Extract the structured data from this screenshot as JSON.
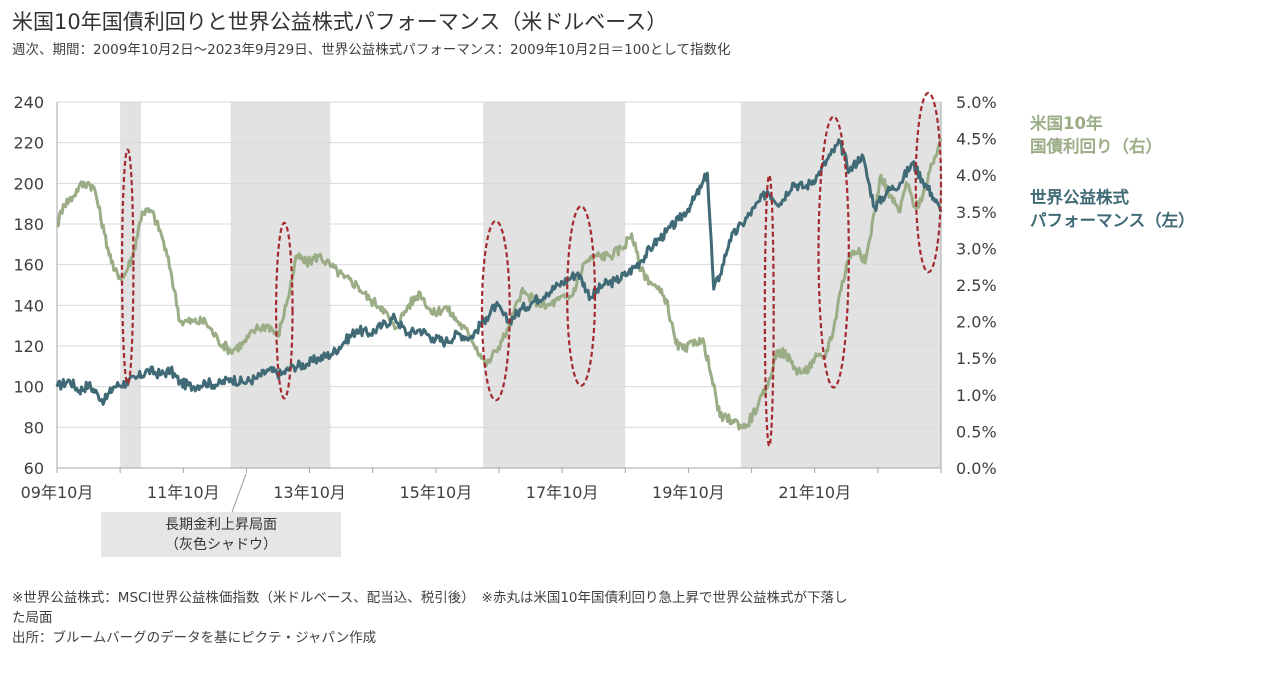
{
  "header": {
    "title": "米国10年国債利回りと世界公益株式パフォーマンス（米ドルベース）",
    "subtitle": "週次、期間：2009年10月2日～2023年9月29日、世界公益株式パフォーマンス：2009年10月2日＝100として指数化"
  },
  "legend": {
    "yield_line1": "米国10年",
    "yield_line2": "国債利回り（右）",
    "equity_line1": "世界公益株式",
    "equity_line2": "パフォーマンス（左）"
  },
  "shadow_label": {
    "line1": "長期金利上昇局面",
    "line2": "（灰色シャドウ）"
  },
  "notes": {
    "line1": "※世界公益株式：MSCI世界公益株価指数（米ドルベース、配当込、税引後）　※赤丸は米国10年国債利回り急上昇で世界公益株式が下落し",
    "line2": "た局面",
    "line3": "出所：ブルームバーグのデータを基にピクテ・ジャパン作成"
  },
  "chart_data": {
    "type": "line",
    "x_range": [
      2009.75,
      2023.75
    ],
    "x_ticks": [
      {
        "x": 2009.75,
        "label": "09年10月"
      },
      {
        "x": 2011.75,
        "label": "11年10月"
      },
      {
        "x": 2013.75,
        "label": "13年10月"
      },
      {
        "x": 2015.75,
        "label": "15年10月"
      },
      {
        "x": 2017.75,
        "label": "17年10月"
      },
      {
        "x": 2019.75,
        "label": "19年10月"
      },
      {
        "x": 2021.75,
        "label": "21年10月"
      }
    ],
    "y_left": {
      "min": 60,
      "max": 240,
      "ticks": [
        "60",
        "80",
        "100",
        "120",
        "140",
        "160",
        "180",
        "200",
        "220",
        "240"
      ]
    },
    "y_right": {
      "min": 0,
      "max": 5,
      "ticks": [
        "0.0%",
        "0.5%",
        "1.0%",
        "1.5%",
        "2.0%",
        "2.5%",
        "3.0%",
        "3.5%",
        "4.0%",
        "4.5%",
        "5.0%"
      ]
    },
    "grid": true,
    "colors": {
      "yield": "#9bad86",
      "equity": "#3f6a76",
      "shadow": "#e2e2e2",
      "circle": "#a42a2e"
    },
    "shaded_periods": [
      [
        2010.75,
        2011.08
      ],
      [
        2012.5,
        2014.08
      ],
      [
        2016.5,
        2018.75
      ],
      [
        2020.58,
        2023.75
      ]
    ],
    "circles": [
      {
        "x": 2010.87,
        "y_center_pct": 2.75,
        "y_span_pct": 3.2,
        "x_halfwidth": 0.09
      },
      {
        "x": 2013.35,
        "y_center_pct": 2.15,
        "y_span_pct": 2.4,
        "x_halfwidth": 0.13
      },
      {
        "x": 2016.7,
        "y_center_pct": 2.15,
        "y_span_pct": 2.45,
        "x_halfwidth": 0.22
      },
      {
        "x": 2018.05,
        "y_center_pct": 2.35,
        "y_span_pct": 2.45,
        "x_halfwidth": 0.22
      },
      {
        "x": 2021.03,
        "y_center_pct": 2.15,
        "y_span_pct": 3.7,
        "x_halfwidth": 0.07
      },
      {
        "x": 2022.05,
        "y_center_pct": 2.95,
        "y_span_pct": 3.7,
        "x_halfwidth": 0.24
      },
      {
        "x": 2023.55,
        "y_center_pct": 3.9,
        "y_span_pct": 2.45,
        "x_halfwidth": 0.2
      }
    ],
    "series": [
      {
        "name": "世界公益株式パフォーマンス（左）",
        "axis": "left",
        "points": [
          [
            2009.75,
            100
          ],
          [
            2009.95,
            103
          ],
          [
            2010.1,
            98
          ],
          [
            2010.25,
            101
          ],
          [
            2010.4,
            96
          ],
          [
            2010.5,
            93
          ],
          [
            2010.65,
            100
          ],
          [
            2010.85,
            102
          ],
          [
            2011.0,
            104
          ],
          [
            2011.2,
            108
          ],
          [
            2011.4,
            106
          ],
          [
            2011.55,
            108
          ],
          [
            2011.7,
            102
          ],
          [
            2011.9,
            100
          ],
          [
            2012.1,
            102
          ],
          [
            2012.3,
            101
          ],
          [
            2012.5,
            104
          ],
          [
            2012.7,
            102
          ],
          [
            2012.9,
            104
          ],
          [
            2013.1,
            108
          ],
          [
            2013.3,
            106
          ],
          [
            2013.5,
            110
          ],
          [
            2013.7,
            111
          ],
          [
            2013.9,
            114
          ],
          [
            2014.1,
            116
          ],
          [
            2014.3,
            122
          ],
          [
            2014.5,
            128
          ],
          [
            2014.7,
            126
          ],
          [
            2014.9,
            130
          ],
          [
            2015.1,
            134
          ],
          [
            2015.3,
            126
          ],
          [
            2015.5,
            128
          ],
          [
            2015.7,
            124
          ],
          [
            2015.9,
            122
          ],
          [
            2016.1,
            126
          ],
          [
            2016.3,
            124
          ],
          [
            2016.55,
            134
          ],
          [
            2016.7,
            140
          ],
          [
            2016.9,
            132
          ],
          [
            2017.1,
            138
          ],
          [
            2017.3,
            142
          ],
          [
            2017.5,
            146
          ],
          [
            2017.7,
            150
          ],
          [
            2017.9,
            154
          ],
          [
            2018.0,
            156
          ],
          [
            2018.2,
            144
          ],
          [
            2018.4,
            150
          ],
          [
            2018.6,
            152
          ],
          [
            2018.8,
            156
          ],
          [
            2019.0,
            162
          ],
          [
            2019.2,
            170
          ],
          [
            2019.4,
            176
          ],
          [
            2019.6,
            182
          ],
          [
            2019.8,
            190
          ],
          [
            2019.95,
            198
          ],
          [
            2020.05,
            205
          ],
          [
            2020.15,
            148
          ],
          [
            2020.25,
            155
          ],
          [
            2020.4,
            172
          ],
          [
            2020.6,
            180
          ],
          [
            2020.8,
            188
          ],
          [
            2021.0,
            196
          ],
          [
            2021.2,
            190
          ],
          [
            2021.4,
            200
          ],
          [
            2021.6,
            198
          ],
          [
            2021.8,
            204
          ],
          [
            2022.0,
            214
          ],
          [
            2022.15,
            220
          ],
          [
            2022.3,
            206
          ],
          [
            2022.5,
            214
          ],
          [
            2022.7,
            188
          ],
          [
            2022.9,
            196
          ],
          [
            2023.1,
            200
          ],
          [
            2023.3,
            210
          ],
          [
            2023.45,
            202
          ],
          [
            2023.6,
            195
          ],
          [
            2023.75,
            186
          ]
        ]
      },
      {
        "name": "米国10年国債利回り（右）",
        "axis": "right",
        "points": [
          [
            2009.75,
            3.3
          ],
          [
            2009.85,
            3.6
          ],
          [
            2010.0,
            3.7
          ],
          [
            2010.1,
            3.85
          ],
          [
            2010.25,
            3.9
          ],
          [
            2010.35,
            3.8
          ],
          [
            2010.5,
            3.2
          ],
          [
            2010.65,
            2.7
          ],
          [
            2010.8,
            2.6
          ],
          [
            2010.95,
            2.9
          ],
          [
            2011.1,
            3.5
          ],
          [
            2011.25,
            3.5
          ],
          [
            2011.4,
            3.2
          ],
          [
            2011.55,
            2.7
          ],
          [
            2011.7,
            2.0
          ],
          [
            2011.9,
            2.0
          ],
          [
            2012.1,
            2.0
          ],
          [
            2012.3,
            1.75
          ],
          [
            2012.5,
            1.6
          ],
          [
            2012.7,
            1.7
          ],
          [
            2012.9,
            1.9
          ],
          [
            2013.1,
            1.95
          ],
          [
            2013.25,
            1.8
          ],
          [
            2013.4,
            2.3
          ],
          [
            2013.55,
            2.9
          ],
          [
            2013.7,
            2.8
          ],
          [
            2013.9,
            2.9
          ],
          [
            2014.1,
            2.75
          ],
          [
            2014.3,
            2.6
          ],
          [
            2014.5,
            2.5
          ],
          [
            2014.7,
            2.3
          ],
          [
            2014.9,
            2.2
          ],
          [
            2015.1,
            1.9
          ],
          [
            2015.3,
            2.2
          ],
          [
            2015.5,
            2.4
          ],
          [
            2015.7,
            2.1
          ],
          [
            2015.9,
            2.2
          ],
          [
            2016.1,
            2.0
          ],
          [
            2016.3,
            1.8
          ],
          [
            2016.55,
            1.4
          ],
          [
            2016.7,
            1.6
          ],
          [
            2016.9,
            1.9
          ],
          [
            2017.1,
            2.4
          ],
          [
            2017.3,
            2.3
          ],
          [
            2017.5,
            2.2
          ],
          [
            2017.7,
            2.3
          ],
          [
            2017.9,
            2.35
          ],
          [
            2018.1,
            2.8
          ],
          [
            2018.3,
            2.9
          ],
          [
            2018.5,
            2.9
          ],
          [
            2018.7,
            3.0
          ],
          [
            2018.85,
            3.2
          ],
          [
            2019.0,
            2.7
          ],
          [
            2019.2,
            2.5
          ],
          [
            2019.4,
            2.3
          ],
          [
            2019.55,
            1.7
          ],
          [
            2019.7,
            1.6
          ],
          [
            2019.85,
            1.75
          ],
          [
            2020.0,
            1.7
          ],
          [
            2020.1,
            1.3
          ],
          [
            2020.25,
            0.7
          ],
          [
            2020.45,
            0.65
          ],
          [
            2020.65,
            0.55
          ],
          [
            2020.85,
            0.85
          ],
          [
            2021.0,
            1.1
          ],
          [
            2021.15,
            1.6
          ],
          [
            2021.3,
            1.55
          ],
          [
            2021.45,
            1.35
          ],
          [
            2021.6,
            1.3
          ],
          [
            2021.75,
            1.5
          ],
          [
            2021.9,
            1.5
          ],
          [
            2022.05,
            1.9
          ],
          [
            2022.15,
            2.4
          ],
          [
            2022.3,
            2.9
          ],
          [
            2022.45,
            3.0
          ],
          [
            2022.55,
            2.8
          ],
          [
            2022.7,
            3.5
          ],
          [
            2022.8,
            4.0
          ],
          [
            2022.95,
            3.7
          ],
          [
            2023.1,
            3.5
          ],
          [
            2023.2,
            3.9
          ],
          [
            2023.35,
            3.55
          ],
          [
            2023.5,
            3.8
          ],
          [
            2023.65,
            4.25
          ],
          [
            2023.75,
            4.5
          ]
        ]
      }
    ]
  }
}
